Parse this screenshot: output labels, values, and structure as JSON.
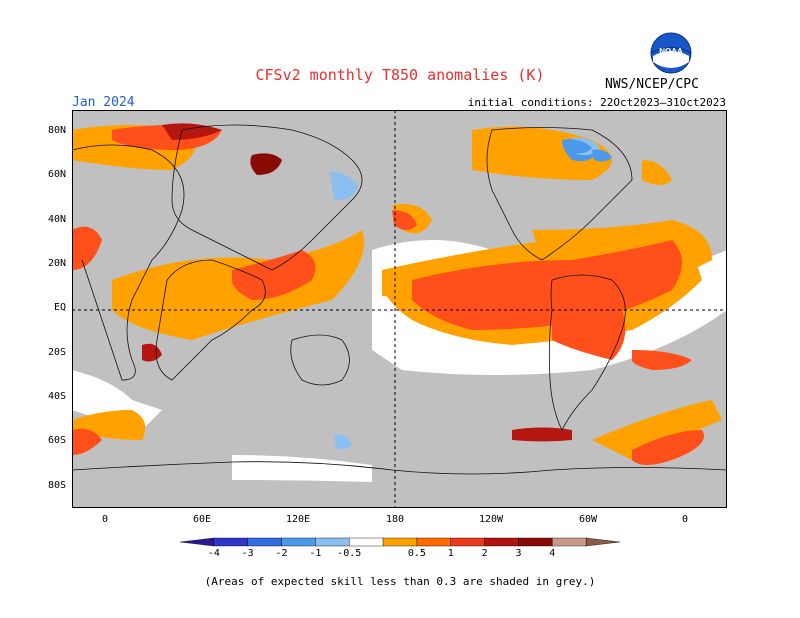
{
  "title": "CFSv2 monthly T850 anomalies (K)",
  "valid_month": "Jan 2024",
  "initial_conditions": "initial conditions: 22Oct2023–31Oct2023",
  "agency": "NWS/NCEP/CPC",
  "logo_text": "NOAA",
  "footnote": "(Areas of expected skill less than 0.3 are shaded in grey.)",
  "lat_labels": [
    "80N",
    "60N",
    "40N",
    "20N",
    "EQ",
    "20S",
    "40S",
    "60S",
    "80S"
  ],
  "lon_labels": [
    "0",
    "60E",
    "120E",
    "180",
    "120W",
    "60W",
    "0"
  ],
  "colorbar": {
    "labels": [
      "-4",
      "-3",
      "-2",
      "-1",
      "-0.5",
      "0.5",
      "1",
      "2",
      "3",
      "4"
    ],
    "colors": [
      "#2a1a9a",
      "#3236c8",
      "#2f6ee0",
      "#4a99ea",
      "#8bbff0",
      "#ffffff",
      "#ffa200",
      "#ff6a00",
      "#e83a1e",
      "#b01410",
      "#8a0a06",
      "#c9988c",
      "#8a5a4a"
    ]
  },
  "colors": {
    "skill_grey": "#c0c0c0",
    "neutral": "#ffffff",
    "orange_05_1": "#ffa200",
    "redorange_1_2": "#ff4f1a",
    "red_2_3": "#b51610",
    "darkred_3_4": "#8a0a06",
    "lightblue": "#8bbff0",
    "blue": "#4a99ea"
  }
}
